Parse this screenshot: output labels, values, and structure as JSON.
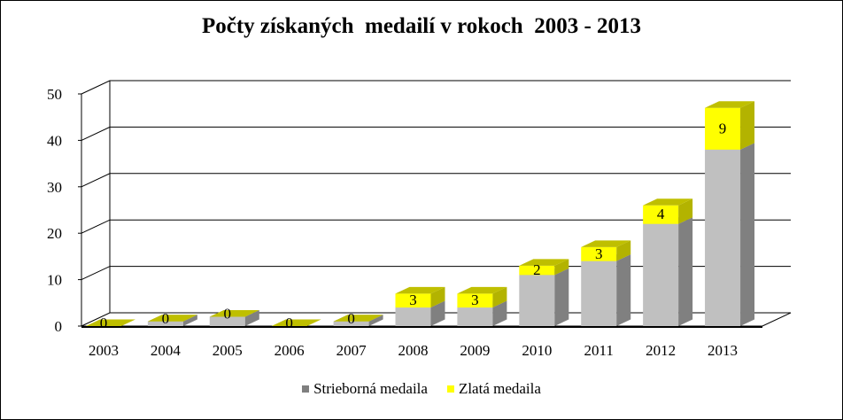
{
  "chart_data": {
    "type": "bar",
    "stacked": true,
    "three_d": true,
    "title": "Počty získaných  medailí v rokoch  2003 - 2013",
    "categories": [
      "2003",
      "2004",
      "2005",
      "2006",
      "2007",
      "2008",
      "2009",
      "2010",
      "2011",
      "2012",
      "2013"
    ],
    "series": [
      {
        "name": "Strieborná medaila",
        "values": [
          0,
          1,
          2,
          0,
          1,
          4,
          4,
          11,
          14,
          22,
          38
        ],
        "color": "#C0C0C0",
        "legend_color": "#7F7F7F",
        "side_color": "#808080",
        "top_color": "#A6A6A6"
      },
      {
        "name": "Zlatá medaila",
        "values": [
          0,
          0,
          0,
          0,
          0,
          3,
          3,
          2,
          3,
          4,
          9
        ],
        "data_labels": [
          "0",
          "0",
          "0",
          "0",
          "0",
          "3",
          "3",
          "2",
          "3",
          "4",
          "9"
        ],
        "color": "#FFFF00",
        "side_color": "#B3B300",
        "top_color": "#BFBF00"
      }
    ],
    "xlabel": "",
    "ylabel": "",
    "ylim": [
      0,
      50
    ],
    "y_ticks": [
      "0",
      "10",
      "20",
      "30",
      "40",
      "50"
    ],
    "grid": true,
    "legend_position": "bottom"
  }
}
